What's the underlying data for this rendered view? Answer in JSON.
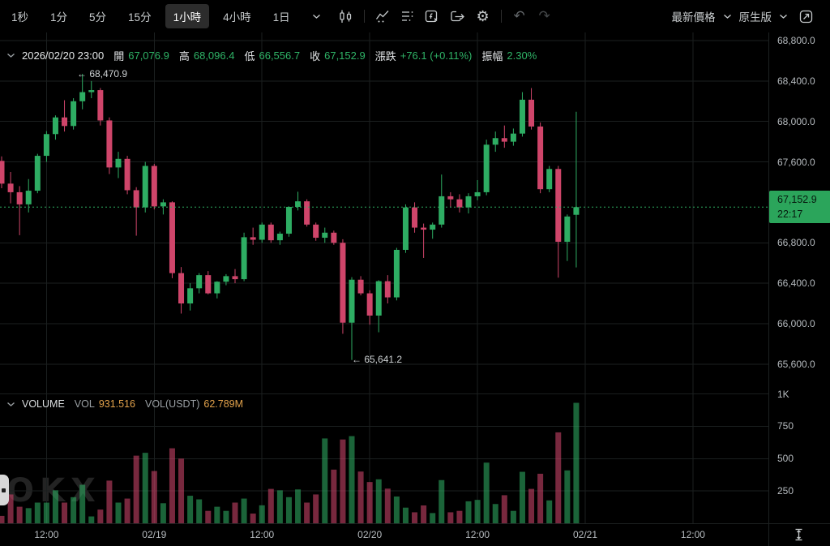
{
  "toolbar": {
    "timeframes": [
      "1秒",
      "1分",
      "5分",
      "15分",
      "1小時",
      "4小時",
      "1日"
    ],
    "active_timeframe": "1小時",
    "icons": [
      "candlestick-chart",
      "indicator",
      "indicator-list",
      "formula",
      "replay",
      "settings",
      "undo",
      "redo"
    ],
    "price_mode": "最新價格",
    "version_mode": "原生版"
  },
  "ohlc_bar": {
    "datetime": "2026/02/20 23:00",
    "open_label": "開",
    "open": "67,076.9",
    "high_label": "高",
    "high": "68,096.4",
    "low_label": "低",
    "low": "66,556.7",
    "close_label": "收",
    "close": "67,152.9",
    "change_label": "漲跌",
    "change": "+76.1 (+0.11%)",
    "amplitude_label": "振幅",
    "amplitude": "2.30%"
  },
  "price_axis": {
    "ticks": [
      "68,800.0",
      "68,400.0",
      "68,000.0",
      "67,600.0",
      "66,800.0",
      "66,400.0",
      "66,000.0",
      "65,600.0"
    ],
    "current_price": "67,152.9",
    "current_time": "22:17"
  },
  "volume_axis": {
    "ticks": [
      {
        "label": "1K",
        "value": 1000
      },
      {
        "label": "750",
        "value": 750
      },
      {
        "label": "500",
        "value": 500
      },
      {
        "label": "250",
        "value": 250
      }
    ]
  },
  "x_axis": {
    "ticks": [
      "12:00",
      "02/19",
      "12:00",
      "02/20",
      "12:00",
      "02/21",
      "12:00"
    ]
  },
  "annotations": {
    "high": "← 68,470.9",
    "low": "← 65,641.2"
  },
  "volume_header": {
    "title": "VOLUME",
    "vol_label": "VOL",
    "vol_value": "931.516",
    "vol_usdt_label": "VOL(USDT)",
    "vol_usdt_value": "62.789M"
  },
  "watermark": "OKX",
  "colors": {
    "up": "#2EAD63",
    "down": "#CF456A",
    "accent_orange": "#E2A24B",
    "badge_green": "#2BA55B",
    "grid": "#1B1F1F"
  },
  "chart_data": {
    "type": "candlestick",
    "interval": "1h",
    "start_time": "2026-02-18 07:00",
    "ohlcv_format": [
      "open",
      "high",
      "low",
      "close",
      "volume"
    ],
    "last_price": 67152.9,
    "last_time": "22:17",
    "high_of_window": 68470.9,
    "low_of_window": 65641.2,
    "price_axis_range": [
      65500,
      68880
    ],
    "volume_axis_range": [
      0,
      1045
    ],
    "x_tick_candle_indices": [
      5,
      17,
      29,
      41,
      53,
      65,
      77
    ],
    "candles": [
      [
        67610,
        67655,
        67340,
        67385,
        57
      ],
      [
        67385,
        67500,
        67190,
        67300,
        223
      ],
      [
        67300,
        67360,
        66875,
        67180,
        128
      ],
      [
        67180,
        67430,
        67100,
        67315,
        117
      ],
      [
        67315,
        67680,
        67290,
        67660,
        160
      ],
      [
        67660,
        67905,
        67600,
        67875,
        160
      ],
      [
        67875,
        68060,
        67820,
        68040,
        255
      ],
      [
        68040,
        68210,
        67900,
        67955,
        160
      ],
      [
        67955,
        68230,
        67920,
        68200,
        202
      ],
      [
        68200,
        68470.9,
        68120,
        68290,
        298
      ],
      [
        68290,
        68400,
        68230,
        68310,
        53
      ],
      [
        68310,
        68330,
        67960,
        68010,
        106
      ],
      [
        68010,
        68040,
        67480,
        67545,
        330
      ],
      [
        67545,
        67700,
        67440,
        67630,
        160
      ],
      [
        67630,
        67660,
        67280,
        67320,
        191
      ],
      [
        67320,
        67350,
        66870,
        67150,
        523
      ],
      [
        67150,
        67600,
        67100,
        67560,
        545
      ],
      [
        67560,
        67580,
        67130,
        67160,
        404
      ],
      [
        67160,
        67230,
        67080,
        67200,
        155
      ],
      [
        67200,
        67210,
        66450,
        66500,
        580
      ],
      [
        66500,
        66560,
        66100,
        66200,
        500
      ],
      [
        66200,
        66400,
        66130,
        66350,
        213
      ],
      [
        66350,
        66500,
        66300,
        66480,
        185
      ],
      [
        66480,
        66520,
        66290,
        66300,
        96
      ],
      [
        66300,
        66420,
        66250,
        66415,
        128
      ],
      [
        66415,
        66490,
        66380,
        66470,
        96
      ],
      [
        66470,
        66540,
        66400,
        66440,
        160
      ],
      [
        66440,
        66900,
        66420,
        66855,
        191
      ],
      [
        66855,
        66950,
        66780,
        66830,
        75
      ],
      [
        66830,
        67000,
        66800,
        66980,
        139
      ],
      [
        66980,
        67000,
        66800,
        66825,
        266
      ],
      [
        66825,
        66910,
        66780,
        66890,
        255
      ],
      [
        66890,
        67160,
        66860,
        67155,
        202
      ],
      [
        67155,
        67305,
        67120,
        67210,
        262
      ],
      [
        67210,
        67230,
        66960,
        66980,
        160
      ],
      [
        66980,
        67000,
        66820,
        66850,
        223
      ],
      [
        66850,
        66950,
        66800,
        66900,
        656
      ],
      [
        66900,
        66920,
        66780,
        66800,
        415
      ],
      [
        66800,
        66835,
        65900,
        66010,
        648
      ],
      [
        66010,
        66460,
        65641.2,
        66435,
        674
      ],
      [
        66435,
        66470,
        66280,
        66300,
        400
      ],
      [
        66300,
        66330,
        65990,
        66080,
        319
      ],
      [
        66080,
        66430,
        65915,
        66420,
        340
      ],
      [
        66420,
        66480,
        66200,
        66260,
        268
      ],
      [
        66260,
        66750,
        66230,
        66730,
        207
      ],
      [
        66730,
        67180,
        66700,
        67150,
        121
      ],
      [
        67150,
        67200,
        66900,
        66950,
        85
      ],
      [
        66950,
        66990,
        66650,
        66930,
        138
      ],
      [
        66930,
        67000,
        66840,
        66980,
        79
      ],
      [
        66980,
        67475,
        66950,
        67260,
        334
      ],
      [
        67260,
        67300,
        67150,
        67230,
        85
      ],
      [
        67230,
        67280,
        67100,
        67150,
        96
      ],
      [
        67150,
        67290,
        67090,
        67260,
        170
      ],
      [
        67260,
        67420,
        67220,
        67300,
        181
      ],
      [
        67300,
        67820,
        67270,
        67770,
        469
      ],
      [
        67770,
        67900,
        67700,
        67835,
        149
      ],
      [
        67835,
        67960,
        67740,
        67800,
        217
      ],
      [
        67800,
        67930,
        67760,
        67880,
        96
      ],
      [
        67880,
        68290,
        67850,
        68215,
        398
      ],
      [
        68215,
        68330,
        67920,
        67950,
        266
      ],
      [
        67950,
        67990,
        67290,
        67330,
        383
      ],
      [
        67330,
        67560,
        67300,
        67530,
        177
      ],
      [
        67530,
        67560,
        66455,
        66810,
        703
      ],
      [
        66810,
        67080,
        66620,
        67060,
        409
      ],
      [
        67076.9,
        68096.4,
        66556.7,
        67152.9,
        931.516
      ]
    ]
  }
}
